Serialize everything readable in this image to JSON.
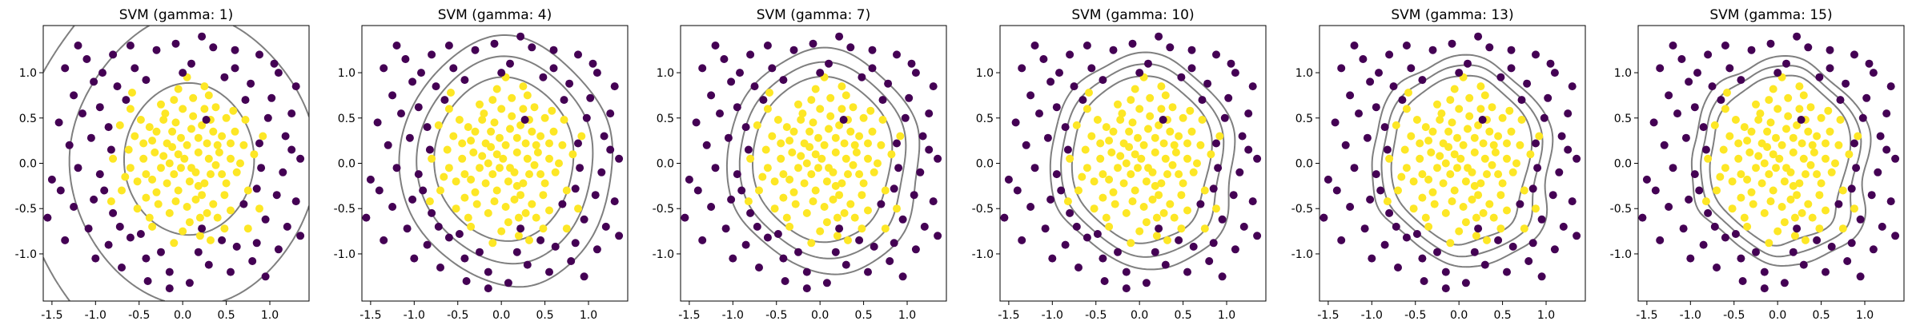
{
  "chart_data": [
    {
      "type": "scatter",
      "title": "SVM (gamma: 1)",
      "gamma": 1,
      "xlabel": "",
      "ylabel": "",
      "xticks": [
        -1.5,
        -1.0,
        -0.5,
        0.0,
        0.5,
        1.0
      ],
      "xtick_labels": [
        "-1.5",
        "-1.0",
        "-0.5",
        "0.0",
        "0.5",
        "1.0"
      ],
      "yticks": [
        -1.0,
        -0.5,
        0.0,
        0.5,
        1.0
      ],
      "ytick_labels": [
        "-1.0",
        "-0.5",
        "0.0",
        "0.5",
        "1.0"
      ],
      "xlim": [
        -1.6,
        1.45
      ],
      "ylim": [
        -1.45,
        1.45
      ]
    },
    {
      "type": "scatter",
      "title": "SVM (gamma: 4)",
      "gamma": 4,
      "xlabel": "",
      "ylabel": "",
      "xticks": [
        -1.5,
        -1.0,
        -0.5,
        0.0,
        0.5,
        1.0
      ],
      "xtick_labels": [
        "-1.5",
        "-1.0",
        "-0.5",
        "0.0",
        "0.5",
        "1.0"
      ],
      "yticks": [
        -1.0,
        -0.5,
        0.0,
        0.5,
        1.0
      ],
      "ytick_labels": [
        "-1.0",
        "-0.5",
        "0.0",
        "0.5",
        "1.0"
      ],
      "xlim": [
        -1.6,
        1.45
      ],
      "ylim": [
        -1.45,
        1.45
      ]
    },
    {
      "type": "scatter",
      "title": "SVM (gamma: 7)",
      "gamma": 7,
      "xlabel": "",
      "ylabel": "",
      "xticks": [
        -1.5,
        -1.0,
        -0.5,
        0.0,
        0.5,
        1.0
      ],
      "xtick_labels": [
        "-1.5",
        "-1.0",
        "-0.5",
        "0.0",
        "0.5",
        "1.0"
      ],
      "yticks": [
        -1.0,
        -0.5,
        0.0,
        0.5,
        1.0
      ],
      "ytick_labels": [
        "-1.0",
        "-0.5",
        "0.0",
        "0.5",
        "1.0"
      ],
      "xlim": [
        -1.6,
        1.45
      ],
      "ylim": [
        -1.45,
        1.45
      ]
    },
    {
      "type": "scatter",
      "title": "SVM (gamma: 10)",
      "gamma": 10,
      "xlabel": "",
      "ylabel": "",
      "xticks": [
        -1.5,
        -1.0,
        -0.5,
        0.0,
        0.5,
        1.0
      ],
      "xtick_labels": [
        "-1.5",
        "-1.0",
        "-0.5",
        "0.0",
        "0.5",
        "1.0"
      ],
      "yticks": [
        -1.0,
        -0.5,
        0.0,
        0.5,
        1.0
      ],
      "ytick_labels": [
        "-1.0",
        "-0.5",
        "0.0",
        "0.5",
        "1.0"
      ],
      "xlim": [
        -1.6,
        1.45
      ],
      "ylim": [
        -1.45,
        1.45
      ]
    },
    {
      "type": "scatter",
      "title": "SVM (gamma: 13)",
      "gamma": 13,
      "xlabel": "",
      "ylabel": "",
      "xticks": [
        -1.5,
        -1.0,
        -0.5,
        0.0,
        0.5,
        1.0
      ],
      "xtick_labels": [
        "-1.5",
        "-1.0",
        "-0.5",
        "0.0",
        "0.5",
        "1.0"
      ],
      "yticks": [
        -1.0,
        -0.5,
        0.0,
        0.5,
        1.0
      ],
      "ytick_labels": [
        "-1.0",
        "-0.5",
        "0.0",
        "0.5",
        "1.0"
      ],
      "xlim": [
        -1.6,
        1.45
      ],
      "ylim": [
        -1.45,
        1.45
      ]
    },
    {
      "type": "scatter",
      "title": "SVM (gamma: 15)",
      "gamma": 15,
      "xlabel": "",
      "ylabel": "",
      "xticks": [
        -1.5,
        -1.0,
        -0.5,
        0.0,
        0.5,
        1.0
      ],
      "xtick_labels": [
        "-1.5",
        "-1.0",
        "-0.5",
        "0.0",
        "0.5",
        "1.0"
      ],
      "yticks": [
        -1.0,
        -0.5,
        0.0,
        0.5,
        1.0
      ],
      "ytick_labels": [
        "-1.0",
        "-0.5",
        "0.0",
        "0.5",
        "1.0"
      ],
      "xlim": [
        -1.6,
        1.45
      ],
      "ylim": [
        -1.45,
        1.45
      ]
    }
  ],
  "points": [
    {
      "x": 0.02,
      "y": 0.05,
      "label": 1
    },
    {
      "x": -0.12,
      "y": 0.18,
      "label": 1
    },
    {
      "x": 0.15,
      "y": -0.1,
      "label": 1
    },
    {
      "x": -0.25,
      "y": -0.05,
      "label": 1
    },
    {
      "x": 0.28,
      "y": 0.22,
      "label": 1
    },
    {
      "x": -0.05,
      "y": -0.3,
      "label": 1
    },
    {
      "x": 0.1,
      "y": 0.38,
      "label": 1
    },
    {
      "x": -0.35,
      "y": 0.25,
      "label": 1
    },
    {
      "x": 0.38,
      "y": -0.02,
      "label": 1
    },
    {
      "x": -0.3,
      "y": -0.32,
      "label": 1
    },
    {
      "x": 0.22,
      "y": -0.35,
      "label": 1
    },
    {
      "x": -0.08,
      "y": 0.45,
      "label": 1
    },
    {
      "x": 0.45,
      "y": 0.3,
      "label": 1
    },
    {
      "x": -0.45,
      "y": 0.05,
      "label": 1
    },
    {
      "x": 0.05,
      "y": -0.48,
      "label": 1
    },
    {
      "x": 0.32,
      "y": 0.48,
      "label": 1
    },
    {
      "x": -0.2,
      "y": 0.55,
      "label": 1
    },
    {
      "x": 0.5,
      "y": -0.22,
      "label": 1
    },
    {
      "x": -0.52,
      "y": -0.2,
      "label": 1
    },
    {
      "x": -0.15,
      "y": -0.55,
      "label": 1
    },
    {
      "x": 0.18,
      "y": 0.12,
      "label": 1
    },
    {
      "x": -0.02,
      "y": 0.28,
      "label": 1
    },
    {
      "x": 0.08,
      "y": -0.2,
      "label": 1
    },
    {
      "x": -0.22,
      "y": 0.08,
      "label": 1
    },
    {
      "x": 0.3,
      "y": 0.05,
      "label": 1
    },
    {
      "x": -0.1,
      "y": -0.12,
      "label": 1
    },
    {
      "x": 0.25,
      "y": -0.22,
      "label": 1
    },
    {
      "x": -0.38,
      "y": 0.4,
      "label": 1
    },
    {
      "x": 0.42,
      "y": 0.12,
      "label": 1
    },
    {
      "x": -0.28,
      "y": -0.45,
      "label": 1
    },
    {
      "x": 0.12,
      "y": 0.52,
      "label": 1
    },
    {
      "x": 0.55,
      "y": 0.05,
      "label": 1
    },
    {
      "x": -0.55,
      "y": 0.3,
      "label": 1
    },
    {
      "x": 0.35,
      "y": -0.45,
      "label": 1
    },
    {
      "x": -0.42,
      "y": -0.38,
      "label": 1
    },
    {
      "x": 0.0,
      "y": 0.6,
      "label": 1
    },
    {
      "x": 0.6,
      "y": 0.35,
      "label": 1
    },
    {
      "x": -0.6,
      "y": -0.05,
      "label": 1
    },
    {
      "x": 0.2,
      "y": -0.6,
      "label": 1
    },
    {
      "x": -0.12,
      "y": 0.35,
      "label": 1
    },
    {
      "x": 0.05,
      "y": 0.2,
      "label": 1
    },
    {
      "x": -0.18,
      "y": -0.22,
      "label": 1
    },
    {
      "x": 0.35,
      "y": 0.35,
      "label": 1
    },
    {
      "x": -0.32,
      "y": 0.12,
      "label": 1
    },
    {
      "x": 0.15,
      "y": -0.4,
      "label": 1
    },
    {
      "x": -0.05,
      "y": 0.1,
      "label": 1
    },
    {
      "x": 0.48,
      "y": -0.35,
      "label": 1
    },
    {
      "x": -0.48,
      "y": 0.48,
      "label": 1
    },
    {
      "x": 0.25,
      "y": 0.6,
      "label": 1
    },
    {
      "x": -0.25,
      "y": 0.65,
      "label": 1
    },
    {
      "x": 0.62,
      "y": -0.1,
      "label": 1
    },
    {
      "x": -0.62,
      "y": 0.15,
      "label": 1
    },
    {
      "x": 0.4,
      "y": -0.6,
      "label": 1
    },
    {
      "x": -0.38,
      "y": -0.6,
      "label": 1
    },
    {
      "x": 0.08,
      "y": -0.65,
      "label": 1
    },
    {
      "x": -0.1,
      "y": 0.7,
      "label": 1
    },
    {
      "x": 0.7,
      "y": 0.2,
      "label": 1
    },
    {
      "x": -0.7,
      "y": -0.3,
      "label": 1
    },
    {
      "x": 0.18,
      "y": 0.28,
      "label": 1
    },
    {
      "x": -0.02,
      "y": -0.05,
      "label": 1
    },
    {
      "x": 0.1,
      "y": -0.05,
      "label": 1
    },
    {
      "x": -0.15,
      "y": 0.0,
      "label": 1
    },
    {
      "x": 0.22,
      "y": 0.42,
      "label": 1
    },
    {
      "x": -0.42,
      "y": -0.12,
      "label": 1
    },
    {
      "x": 0.5,
      "y": 0.5,
      "label": 1
    },
    {
      "x": -0.52,
      "y": -0.5,
      "label": 1
    },
    {
      "x": 0.32,
      "y": -0.12,
      "label": 1
    },
    {
      "x": -0.3,
      "y": 0.35,
      "label": 1
    },
    {
      "x": 0.12,
      "y": 0.72,
      "label": 1
    },
    {
      "x": 0.75,
      "y": -0.3,
      "label": 1
    },
    {
      "x": -0.72,
      "y": 0.42,
      "label": 1
    },
    {
      "x": 0.0,
      "y": -0.75,
      "label": 1
    },
    {
      "x": 0.58,
      "y": 0.58,
      "label": 1
    },
    {
      "x": -0.6,
      "y": 0.6,
      "label": 1
    },
    {
      "x": 0.3,
      "y": 0.75,
      "label": 1
    },
    {
      "x": -0.45,
      "y": 0.22,
      "label": 1
    },
    {
      "x": 0.45,
      "y": -0.12,
      "label": 1
    },
    {
      "x": -0.08,
      "y": -0.42,
      "label": 1
    },
    {
      "x": 0.28,
      "y": -0.55,
      "label": 1
    },
    {
      "x": -0.22,
      "y": 0.48,
      "label": 1
    },
    {
      "x": 0.66,
      "y": 0.0,
      "label": 1
    },
    {
      "x": -0.66,
      "y": -0.15,
      "label": 1
    },
    {
      "x": 0.38,
      "y": 0.62,
      "label": 1
    },
    {
      "x": -0.35,
      "y": -0.7,
      "label": 1
    },
    {
      "x": 0.55,
      "y": -0.52,
      "label": 1
    },
    {
      "x": -0.05,
      "y": 0.82,
      "label": 1
    },
    {
      "x": 0.82,
      "y": 0.1,
      "label": 1
    },
    {
      "x": -0.8,
      "y": 0.05,
      "label": 1
    },
    {
      "x": 0.2,
      "y": -0.8,
      "label": 1
    },
    {
      "x": 0.72,
      "y": 0.48,
      "label": 1
    },
    {
      "x": -0.18,
      "y": 0.22,
      "label": 1
    },
    {
      "x": 0.4,
      "y": 0.2,
      "label": 1
    },
    {
      "x": -0.35,
      "y": -0.18,
      "label": 1
    },
    {
      "x": 0.25,
      "y": 0.85,
      "label": 1
    },
    {
      "x": 0.48,
      "y": -0.72,
      "label": 1
    },
    {
      "x": -0.82,
      "y": -0.42,
      "label": 1
    },
    {
      "x": 0.88,
      "y": -0.5,
      "label": 1
    },
    {
      "x": 0.05,
      "y": 0.95,
      "label": 1
    },
    {
      "x": -0.58,
      "y": 0.78,
      "label": 1
    },
    {
      "x": 0.32,
      "y": -0.85,
      "label": 1
    },
    {
      "x": 0.75,
      "y": -0.72,
      "label": 1
    },
    {
      "x": -0.1,
      "y": -0.88,
      "label": 1
    },
    {
      "x": 0.92,
      "y": 0.3,
      "label": 1
    },
    {
      "x": 0.55,
      "y": 0.22,
      "label": 1
    },
    {
      "x": 0.18,
      "y": -0.25,
      "label": 1
    },
    {
      "x": -1.35,
      "y": 1.05,
      "label": 0
    },
    {
      "x": -1.1,
      "y": 1.15,
      "label": 0
    },
    {
      "x": -0.8,
      "y": 1.2,
      "label": 0
    },
    {
      "x": -0.55,
      "y": 1.05,
      "label": 0
    },
    {
      "x": -0.3,
      "y": 1.25,
      "label": 0
    },
    {
      "x": -0.08,
      "y": 1.32,
      "label": 0
    },
    {
      "x": 0.1,
      "y": 1.1,
      "label": 0
    },
    {
      "x": 0.35,
      "y": 1.28,
      "label": 0
    },
    {
      "x": 0.6,
      "y": 1.05,
      "label": 0
    },
    {
      "x": 0.88,
      "y": 1.2,
      "label": 0
    },
    {
      "x": 1.1,
      "y": 1.0,
      "label": 0
    },
    {
      "x": 1.3,
      "y": 0.85,
      "label": 0
    },
    {
      "x": -1.25,
      "y": 0.75,
      "label": 0
    },
    {
      "x": -1.02,
      "y": 0.9,
      "label": 0
    },
    {
      "x": -0.75,
      "y": 0.85,
      "label": 0
    },
    {
      "x": -0.42,
      "y": 0.92,
      "label": 0
    },
    {
      "x": 0.48,
      "y": 0.95,
      "label": 0
    },
    {
      "x": 0.78,
      "y": 0.88,
      "label": 0
    },
    {
      "x": 1.02,
      "y": 0.72,
      "label": 0
    },
    {
      "x": 1.25,
      "y": 0.55,
      "label": 0
    },
    {
      "x": -1.42,
      "y": 0.45,
      "label": 0
    },
    {
      "x": -1.15,
      "y": 0.55,
      "label": 0
    },
    {
      "x": -0.95,
      "y": 0.62,
      "label": 0
    },
    {
      "x": 0.98,
      "y": 0.5,
      "label": 0
    },
    {
      "x": 1.18,
      "y": 0.3,
      "label": 0
    },
    {
      "x": -1.3,
      "y": 0.2,
      "label": 0
    },
    {
      "x": -1.05,
      "y": 0.28,
      "label": 0
    },
    {
      "x": -0.85,
      "y": 0.4,
      "label": 0
    },
    {
      "x": 0.9,
      "y": -0.05,
      "label": 0
    },
    {
      "x": 1.15,
      "y": -0.1,
      "label": 0
    },
    {
      "x": 1.35,
      "y": 0.05,
      "label": 0
    },
    {
      "x": -1.5,
      "y": -0.18,
      "label": 0
    },
    {
      "x": -1.2,
      "y": -0.05,
      "label": 0
    },
    {
      "x": -0.95,
      "y": -0.12,
      "label": 0
    },
    {
      "x": 0.85,
      "y": -0.28,
      "label": 0
    },
    {
      "x": 1.08,
      "y": -0.35,
      "label": 0
    },
    {
      "x": 1.3,
      "y": -0.42,
      "label": 0
    },
    {
      "x": -1.55,
      "y": -0.6,
      "label": 0
    },
    {
      "x": -1.25,
      "y": -0.48,
      "label": 0
    },
    {
      "x": -1.02,
      "y": -0.4,
      "label": 0
    },
    {
      "x": -0.8,
      "y": -0.55,
      "label": 0
    },
    {
      "x": 0.95,
      "y": -0.62,
      "label": 0
    },
    {
      "x": 1.2,
      "y": -0.7,
      "label": 0
    },
    {
      "x": -1.35,
      "y": -0.85,
      "label": 0
    },
    {
      "x": -1.08,
      "y": -0.72,
      "label": 0
    },
    {
      "x": -0.85,
      "y": -0.9,
      "label": 0
    },
    {
      "x": -0.6,
      "y": -0.82,
      "label": 0
    },
    {
      "x": 0.62,
      "y": -0.92,
      "label": 0
    },
    {
      "x": 0.85,
      "y": -0.88,
      "label": 0
    },
    {
      "x": 1.1,
      "y": -0.95,
      "label": 0
    },
    {
      "x": -1.0,
      "y": -1.05,
      "label": 0
    },
    {
      "x": -0.7,
      "y": -1.15,
      "label": 0
    },
    {
      "x": -0.42,
      "y": -1.05,
      "label": 0
    },
    {
      "x": -0.15,
      "y": -1.2,
      "label": 0
    },
    {
      "x": 0.08,
      "y": -1.32,
      "label": 0
    },
    {
      "x": 0.3,
      "y": -1.12,
      "label": 0
    },
    {
      "x": 0.55,
      "y": -1.2,
      "label": 0
    },
    {
      "x": 0.8,
      "y": -1.08,
      "label": 0
    },
    {
      "x": -0.25,
      "y": -0.98,
      "label": 0
    },
    {
      "x": 0.18,
      "y": -0.98,
      "label": 0
    },
    {
      "x": -0.65,
      "y": 0.7,
      "label": 0
    },
    {
      "x": 0.72,
      "y": 0.7,
      "label": 0
    },
    {
      "x": -0.82,
      "y": 0.15,
      "label": 0
    },
    {
      "x": 0.88,
      "y": 0.22,
      "label": 0
    },
    {
      "x": -0.72,
      "y": -0.7,
      "label": 0
    },
    {
      "x": 0.7,
      "y": -0.45,
      "label": 0
    },
    {
      "x": 0.22,
      "y": -0.72,
      "label": 0
    },
    {
      "x": 0.27,
      "y": 0.48,
      "label": 0
    },
    {
      "x": -0.48,
      "y": -0.78,
      "label": 0
    },
    {
      "x": 0.45,
      "y": -0.85,
      "label": 0
    },
    {
      "x": -0.92,
      "y": 1.0,
      "label": 0
    },
    {
      "x": 0.22,
      "y": 1.4,
      "label": 0
    },
    {
      "x": -0.6,
      "y": 1.3,
      "label": 0
    },
    {
      "x": 1.05,
      "y": 1.1,
      "label": 0
    },
    {
      "x": -1.2,
      "y": 1.3,
      "label": 0
    },
    {
      "x": 1.35,
      "y": -0.8,
      "label": 0
    },
    {
      "x": -0.4,
      "y": -1.3,
      "label": 0
    },
    {
      "x": 0.95,
      "y": -1.25,
      "label": 0
    },
    {
      "x": 1.25,
      "y": 0.15,
      "label": 0
    },
    {
      "x": -1.4,
      "y": -0.3,
      "label": 0
    },
    {
      "x": 0.0,
      "y": 1.0,
      "label": 0
    },
    {
      "x": -0.15,
      "y": -1.38,
      "label": 0
    },
    {
      "x": 0.6,
      "y": 1.25,
      "label": 0
    },
    {
      "x": -0.9,
      "y": -0.3,
      "label": 0
    }
  ],
  "colors": {
    "class0": "#440154",
    "class1": "#fde725",
    "boundary": "#7f7f7f",
    "axes": "#000000"
  }
}
